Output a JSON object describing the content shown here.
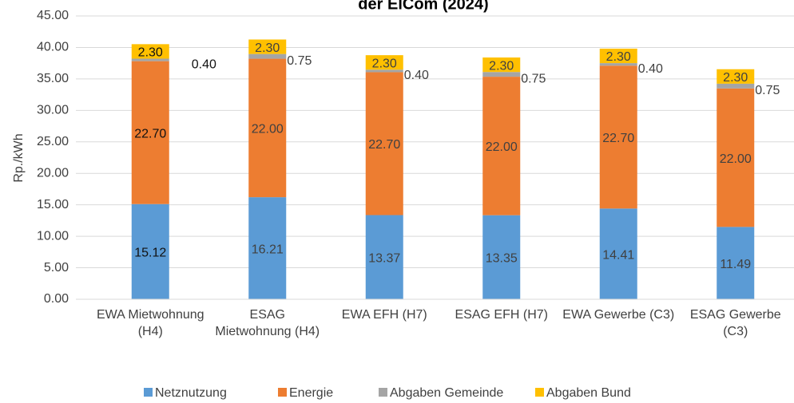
{
  "chart_data": {
    "type": "stacked_bar",
    "title": "der ElCom (2024)",
    "y_label": "Rp./kWh",
    "categories": [
      "EWA Mietwohnung (H4)",
      "ESAG Mietwohnung (H4)",
      "EWA EFH (H7)",
      "ESAG EFH (H7)",
      "EWA Gewerbe (C3)",
      "ESAG Gewerbe (C3)"
    ],
    "series": [
      {
        "name": "Netznutzung",
        "color": "#5b9bd5",
        "values": [
          15.12,
          16.21,
          13.37,
          13.35,
          14.41,
          11.49
        ]
      },
      {
        "name": "Energie",
        "color": "#ed7d31",
        "values": [
          22.7,
          22.0,
          22.7,
          22.0,
          22.7,
          22.0
        ],
        "value_labels": [
          "22.70",
          "22.00",
          "22.70",
          "22.00",
          "22.70",
          "22.00"
        ]
      },
      {
        "name": "Abgaben Gemeinde",
        "color": "#a5a5a5",
        "values": [
          0.4,
          0.75,
          0.4,
          0.75,
          0.4,
          0.75
        ],
        "value_labels": [
          "0.40",
          "0.75",
          "0.40",
          "0.75",
          "0.40",
          "0.75"
        ]
      },
      {
        "name": "Abgaben Bund",
        "color": "#ffc000",
        "values": [
          2.3,
          2.3,
          2.3,
          2.3,
          2.3,
          2.3
        ],
        "value_labels": [
          "2.30",
          "2.30",
          "2.30",
          "2.30",
          "2.30",
          "2.30"
        ]
      }
    ],
    "ylim": [
      0,
      45
    ],
    "yticks": [
      {
        "value": 0,
        "label": "0.00"
      },
      {
        "value": 5,
        "label": "5.00"
      },
      {
        "value": 10,
        "label": "10.00"
      },
      {
        "value": 15,
        "label": "15.00"
      },
      {
        "value": 20,
        "label": "20.00"
      },
      {
        "value": 25,
        "label": "25.00"
      },
      {
        "value": 30,
        "label": "30.00"
      },
      {
        "value": 35,
        "label": "35.00"
      },
      {
        "value": 40,
        "label": "40.00"
      },
      {
        "value": 45,
        "label": "45.00"
      }
    ],
    "grid": true,
    "legend": "bottom"
  }
}
